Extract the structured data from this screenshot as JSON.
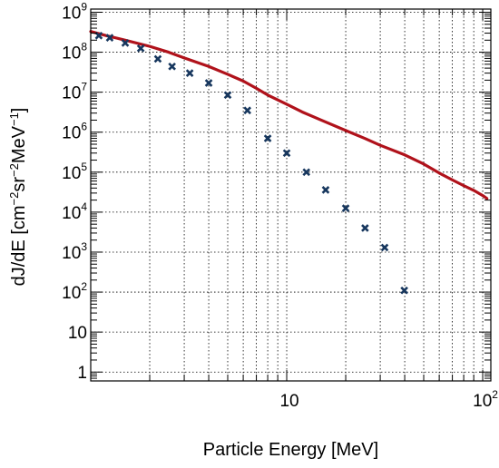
{
  "chart_data": {
    "type": "line",
    "xlabel": "Particle Energy [MeV]",
    "ylabel": {
      "parts": [
        {
          "text": "dJ/dE [cm",
          "sup": false
        },
        {
          "text": "−2",
          "sup": true
        },
        {
          "text": "sr",
          "sup": false
        },
        {
          "text": "−2",
          "sup": true
        },
        {
          "text": "MeV",
          "sup": false
        },
        {
          "text": "−1",
          "sup": true
        },
        {
          "text": "]",
          "sup": false
        }
      ]
    },
    "x_scale": "log",
    "y_scale": "log",
    "xlim": [
      1.0,
      110
    ],
    "ylim": [
      0.6,
      1200000000
    ],
    "grid": true,
    "x_ticks": [
      {
        "value": 10,
        "base": "10",
        "exp": ""
      },
      {
        "value": 100,
        "base": "10",
        "exp": "2"
      }
    ],
    "y_ticks": [
      {
        "value": 1,
        "base": "1",
        "exp": ""
      },
      {
        "value": 10,
        "base": "10",
        "exp": ""
      },
      {
        "value": 100,
        "base": "10",
        "exp": "2"
      },
      {
        "value": 1000,
        "base": "10",
        "exp": "3"
      },
      {
        "value": 10000,
        "base": "10",
        "exp": "4"
      },
      {
        "value": 100000,
        "base": "10",
        "exp": "5"
      },
      {
        "value": 1000000,
        "base": "10",
        "exp": "6"
      },
      {
        "value": 10000000,
        "base": "10",
        "exp": "7"
      },
      {
        "value": 100000000,
        "base": "10",
        "exp": "8"
      },
      {
        "value": 1000000000,
        "base": "10",
        "exp": "9"
      }
    ],
    "series": [
      {
        "kind": "line",
        "color": "#b0121b",
        "x": [
          1.0,
          1.2,
          1.5,
          2.0,
          2.5,
          3.0,
          4.0,
          5.0,
          6.0,
          7.0,
          8.0,
          10.0,
          12.0,
          15.0,
          20.0,
          25.0,
          30.0,
          40.0,
          50.0,
          60.0,
          70.0,
          80.0,
          90.0,
          100.0,
          105.0
        ],
        "y": [
          330000000,
          260000000,
          200000000,
          140000000,
          100000000,
          72000000,
          44000000,
          28000000,
          19000000,
          12500000,
          8500000,
          5000000,
          3200000,
          2000000,
          1100000,
          700000,
          470000,
          270000,
          160000,
          95000,
          64000,
          46000,
          35000,
          26000,
          22000
        ]
      },
      {
        "kind": "scatter",
        "color": "#17375e",
        "x": [
          1.1,
          1.25,
          1.5,
          1.8,
          2.2,
          2.6,
          3.2,
          4.0,
          5.0,
          6.3,
          8.0,
          10.0,
          12.6,
          15.8,
          20.0,
          25.1,
          31.6,
          39.8,
          50.1,
          63.1
        ],
        "y": [
          260000000,
          230000000,
          170000000,
          125000000,
          68000000,
          44000000,
          30000000,
          17000000,
          8500000,
          3500000,
          700000,
          300000,
          100000,
          36000,
          12500,
          4000,
          1300,
          110,
          null,
          null
        ]
      }
    ]
  }
}
